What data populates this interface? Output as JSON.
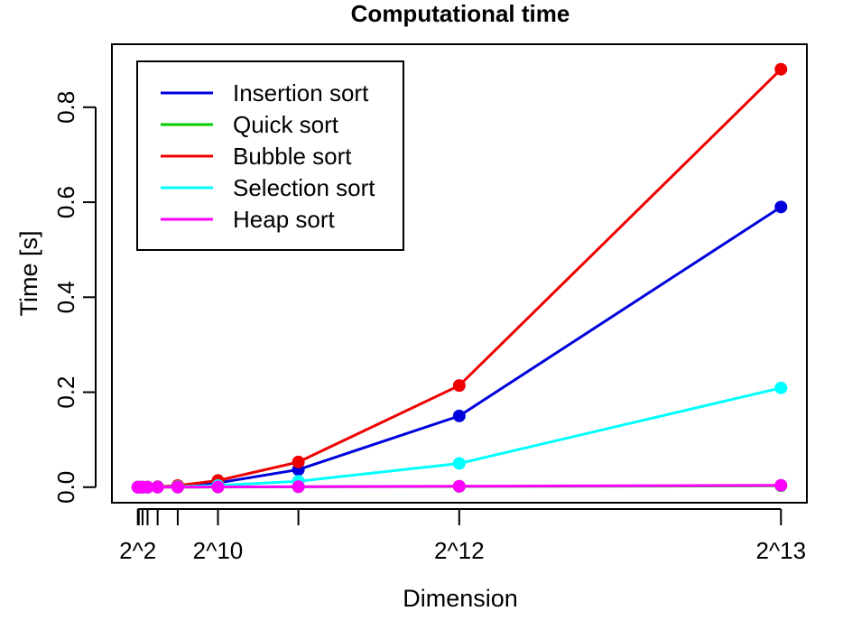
{
  "chart_data": {
    "type": "line",
    "title": "Computational time",
    "xlabel": "Dimension",
    "ylabel": "Time [s]",
    "x": [
      4,
      16,
      64,
      128,
      256,
      512,
      1024,
      2048,
      4096,
      8192
    ],
    "x_tick_marks": [
      4,
      16,
      64,
      128,
      256,
      512,
      1024,
      2048,
      4096,
      8192
    ],
    "x_tick_labels": [
      {
        "value": 4,
        "label": "2^2"
      },
      {
        "value": 1024,
        "label": "2^10"
      },
      {
        "value": 4096,
        "label": "2^12"
      },
      {
        "value": 8192,
        "label": "2^13"
      }
    ],
    "xlim": [
      -326,
      8522
    ],
    "ylim": [
      -0.0327,
      0.9327
    ],
    "y_ticks": [
      0.0,
      0.2,
      0.4,
      0.6,
      0.8
    ],
    "y_tick_labels": [
      "0.0",
      "0.2",
      "0.4",
      "0.6",
      "0.8"
    ],
    "grid": false,
    "legend_position": "top-left",
    "series": [
      {
        "name": "Insertion sort",
        "color": "#0000dd",
        "values": [
          0.0,
          0.0,
          0.0,
          0.0,
          0.0008,
          0.0025,
          0.009,
          0.037,
          0.15,
          0.59
        ]
      },
      {
        "name": "Quick sort",
        "color": "#00cc00",
        "values": [
          0.0,
          0.0,
          0.0,
          0.0,
          0.0,
          0.0,
          0.0003,
          0.0007,
          0.0015,
          0.003
        ]
      },
      {
        "name": "Bubble sort",
        "color": "#ee0000",
        "values": [
          0.0,
          0.0,
          0.0,
          0.0,
          0.001,
          0.0035,
          0.014,
          0.053,
          0.214,
          0.88
        ]
      },
      {
        "name": "Selection sort",
        "color": "#00ffff",
        "values": [
          0.0,
          0.0,
          0.0,
          0.0,
          0.0003,
          0.001,
          0.0035,
          0.0125,
          0.05,
          0.209
        ]
      },
      {
        "name": "Heap sort",
        "color": "#ff00ff",
        "values": [
          0.0,
          0.0,
          0.0,
          0.0,
          0.0,
          0.0002,
          0.0005,
          0.001,
          0.002,
          0.004
        ]
      }
    ]
  }
}
